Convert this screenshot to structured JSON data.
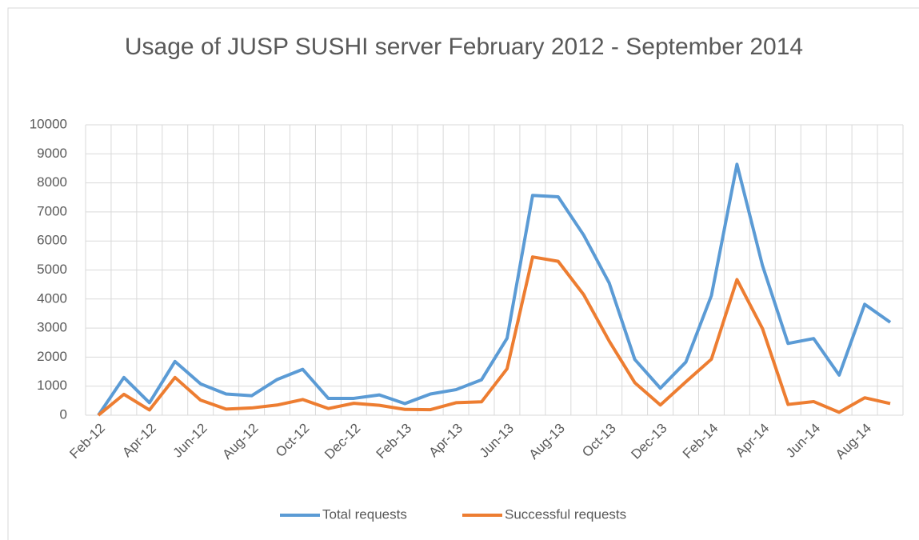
{
  "chart_data": {
    "type": "line",
    "title": "Usage of JUSP SUSHI server February 2012 - September 2014",
    "categories": [
      "Feb-12",
      null,
      "Apr-12",
      null,
      "Jun-12",
      null,
      "Aug-12",
      null,
      "Oct-12",
      null,
      "Dec-12",
      null,
      "Feb-13",
      null,
      "Apr-13",
      null,
      "Jun-13",
      null,
      "Aug-13",
      null,
      "Oct-13",
      null,
      "Dec-13",
      null,
      "Feb-14",
      null,
      "Apr-14",
      null,
      "Jun-14",
      null,
      "Aug-14",
      null
    ],
    "series": [
      {
        "name": "Total requests",
        "color": "#5b9bd5",
        "values": [
          0,
          1300,
          430,
          1850,
          1080,
          730,
          670,
          1230,
          1580,
          580,
          580,
          700,
          400,
          730,
          880,
          1220,
          2650,
          7570,
          7520,
          6200,
          4550,
          1920,
          930,
          1830,
          4120,
          8640,
          5150,
          2470,
          2640,
          1380,
          3820,
          3200
        ]
      },
      {
        "name": "Successful requests",
        "color": "#ed7d31",
        "values": [
          0,
          720,
          180,
          1300,
          520,
          210,
          250,
          350,
          540,
          230,
          410,
          340,
          200,
          190,
          430,
          460,
          1600,
          5450,
          5300,
          4150,
          2550,
          1120,
          350,
          1150,
          1930,
          4670,
          2980,
          370,
          470,
          100,
          600,
          400
        ]
      }
    ],
    "ylim": [
      0,
      10000
    ],
    "yticks": [
      0,
      1000,
      2000,
      3000,
      4000,
      5000,
      6000,
      7000,
      8000,
      9000,
      10000
    ],
    "grid": true,
    "legend": "bottom"
  }
}
